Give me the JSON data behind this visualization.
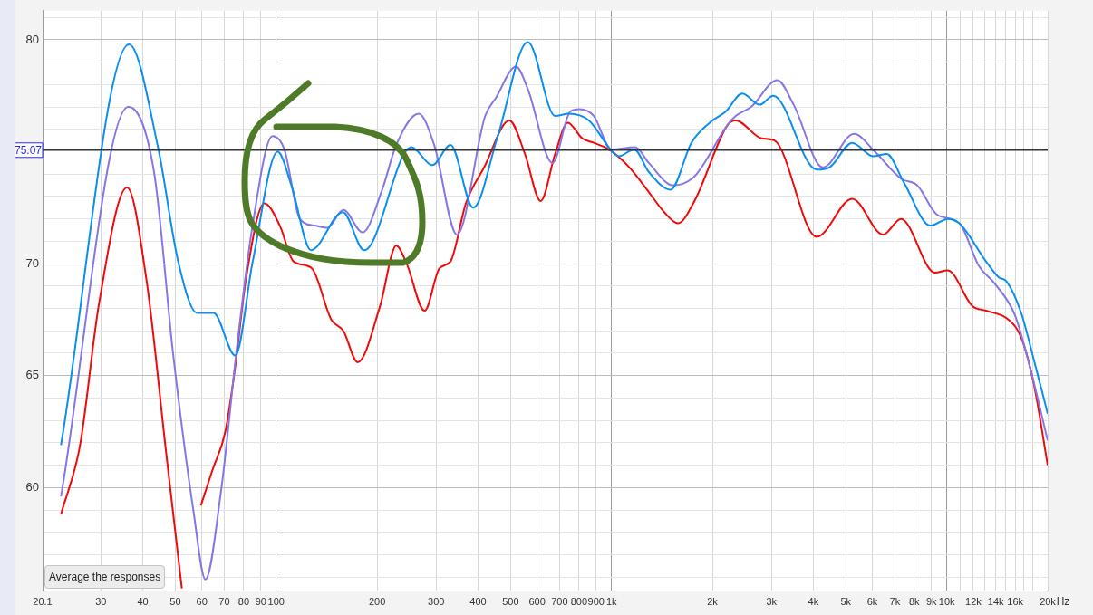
{
  "chart_data": {
    "type": "line",
    "log": "x",
    "grid": true,
    "marker": "none",
    "line_style": "solid",
    "xlim": [
      20.1,
      20000
    ],
    "xticks": [
      {
        "value": 20.1,
        "label": "20.1"
      },
      30,
      40,
      50,
      60,
      70,
      80,
      90,
      100,
      200,
      300,
      400,
      500,
      600,
      700,
      800,
      900,
      {
        "value": 1000,
        "label": "1k"
      },
      {
        "value": 2000,
        "label": "2k"
      },
      {
        "value": 3000,
        "label": "3k"
      },
      {
        "value": 4000,
        "label": "4k"
      },
      {
        "value": 5000,
        "label": "5k"
      },
      {
        "value": 6000,
        "label": "6k"
      },
      {
        "value": 7000,
        "label": "7k"
      },
      {
        "value": 8000,
        "label": "8k"
      },
      {
        "value": 9000,
        "label": "9k"
      },
      {
        "value": 10000,
        "label": "10k"
      },
      {
        "value": 11000,
        "label": null
      },
      {
        "value": 12000,
        "label": "12k"
      },
      {
        "value": 13000,
        "label": null
      },
      {
        "value": 14000,
        "label": "14k"
      },
      {
        "value": 15000,
        "label": null
      },
      {
        "value": 16000,
        "label": "16k"
      },
      {
        "value": 17000,
        "label": null
      },
      {
        "value": 18000,
        "label": null
      },
      {
        "value": 19000,
        "label": null
      },
      {
        "value": 20000,
        "label": "20k"
      }
    ],
    "xlabel": "Hz",
    "ylim": [
      55.4,
      81.3
    ],
    "yticks": [
      {
        "value": 56,
        "label": null
      },
      {
        "value": 57,
        "label": null
      },
      {
        "value": 58,
        "label": null
      },
      {
        "value": 59,
        "label": null
      },
      60,
      {
        "value": 61,
        "label": null
      },
      {
        "value": 62,
        "label": null
      },
      {
        "value": 63,
        "label": null
      },
      {
        "value": 64,
        "label": null
      },
      65,
      {
        "value": 66,
        "label": null
      },
      {
        "value": 67,
        "label": null
      },
      {
        "value": 68,
        "label": null
      },
      {
        "value": 69,
        "label": null
      },
      70,
      {
        "value": 71,
        "label": null
      },
      {
        "value": 72,
        "label": null
      },
      {
        "value": 73,
        "label": null
      },
      {
        "value": 74,
        "label": null
      },
      {
        "value": 76,
        "label": null
      },
      {
        "value": 77,
        "label": null
      },
      {
        "value": 78,
        "label": null
      },
      {
        "value": 79,
        "label": null
      },
      80,
      {
        "value": 81,
        "label": null
      }
    ],
    "ref_lines": [
      {
        "axis": "y",
        "value": 75.07,
        "label": "75.07",
        "color": "#333333"
      }
    ],
    "annotations": [
      "Average the responses"
    ],
    "series": [
      {
        "color": "#0a8ff0",
        "x": [
          22.8,
          36.4,
          44.4,
          51,
          58.1,
          65,
          75.5,
          85.1,
          101,
          111,
          127,
          158,
          183,
          253,
          292,
          331,
          387,
          458,
          563,
          679,
          746,
          856,
          1006,
          1051,
          1169,
          1292,
          1500,
          1731,
          1963,
          2193,
          2455,
          2766,
          3036,
          4093,
          4467,
          5224,
          6030,
          6622,
          7464,
          8933,
          10069,
          10913,
          13092,
          14270,
          15092,
          16672,
          18197,
          20000
        ],
        "values": [
          61.9,
          79.8,
          75.2,
          70.1,
          67.8,
          67.8,
          65.9,
          70.1,
          75,
          73.5,
          70.6,
          72.3,
          70.6,
          75.2,
          74.4,
          75.3,
          72.5,
          75.7,
          79.9,
          76.6,
          76.7,
          76.4,
          75,
          74.8,
          75.1,
          74.1,
          73.3,
          75.4,
          76.3,
          76.8,
          77.6,
          77.1,
          77.5,
          74.2,
          74.3,
          75.4,
          74.8,
          74.9,
          73.6,
          71.7,
          72,
          71.8,
          70.1,
          69.4,
          69.2,
          67.8,
          65.7,
          63.3
        ]
      },
      {
        "color": "#8577e6",
        "x": [
          22.8,
          36.2,
          43.2,
          49.4,
          56.7,
          61.5,
          68.4,
          76.4,
          85,
          97.5,
          105.8,
          117.6,
          130.7,
          141.9,
          158.6,
          181,
          207,
          228,
          266,
          296,
          346,
          420,
          452,
          519,
          563,
          667,
          754,
          802,
          885,
          1000,
          1177,
          1292,
          1528,
          1768,
          2220,
          2347,
          2609,
          3124,
          3494,
          4269,
          5290,
          6108,
          7302,
          8166,
          9334,
          10913,
          12460,
          13920,
          15970,
          17830,
          20000
        ],
        "values": [
          59.6,
          77,
          74.1,
          65.8,
          58.9,
          55.9,
          59.8,
          66.3,
          71.7,
          75.7,
          75.1,
          72,
          71.7,
          71.6,
          72.4,
          71.4,
          73.3,
          75.3,
          76.7,
          75.3,
          71.3,
          76.6,
          77.4,
          78.8,
          77.8,
          74.5,
          76.8,
          76.9,
          76.6,
          75.1,
          75.2,
          74.5,
          73.5,
          73.9,
          76.2,
          76.6,
          77,
          78.2,
          77.1,
          74.3,
          75.8,
          75,
          73.8,
          73.5,
          72.2,
          71.8,
          69.9,
          69.1,
          67.7,
          65.2,
          62.1
        ]
      },
      {
        "color": "#f00a0a",
        "x": [
          22.8,
          26,
          29.6,
          35.9,
          41,
          47,
          52.3,
          53.2,
          54.7,
          56.3,
          59.6,
          64.6,
          70.5,
          75,
          81.4,
          92.2,
          102.5,
          112.6,
          127.5,
          146,
          158.6,
          175,
          204,
          228,
          245,
          277,
          307,
          331,
          368,
          417,
          496,
          552,
          615,
          679,
          741,
          818,
          885,
          985,
          1131,
          1292,
          1436,
          1578,
          1768,
          2220,
          2347,
          2804,
          3065,
          4093,
          5224,
          6460,
          7302,
          9218,
          10069,
          11930,
          13092,
          15280,
          16672,
          18197,
          20000
        ],
        "values": [
          58.8,
          61.9,
          68.2,
          73.4,
          69.3,
          61.5,
          55.5,
          null,
          null,
          null,
          59.2,
          60.8,
          62.5,
          65.1,
          69.4,
          72.7,
          71.7,
          70.1,
          69.8,
          67.5,
          67,
          65.6,
          68.1,
          70.8,
          70,
          67.9,
          69.8,
          70.1,
          72.7,
          74.3,
          76.4,
          74.9,
          72.8,
          74.9,
          76.3,
          75.6,
          75.4,
          75.1,
          74.3,
          73.2,
          72.3,
          71.8,
          72.8,
          76.2,
          76.4,
          75.6,
          75.5,
          71.2,
          72.9,
          71.3,
          72,
          69.6,
          69.7,
          68.1,
          67.9,
          67.5,
          66.7,
          64.6,
          61
        ]
      }
    ]
  }
}
